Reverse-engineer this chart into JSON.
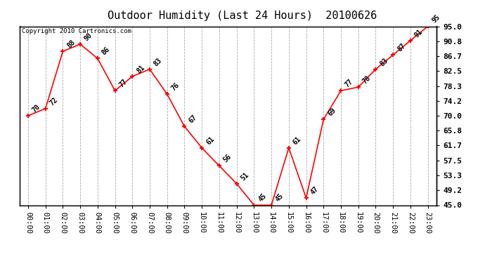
{
  "title": "Outdoor Humidity (Last 24 Hours)  20100626",
  "copyright_text": "Copyright 2010 Cartronics.com",
  "hours": [
    0,
    1,
    2,
    3,
    4,
    5,
    6,
    7,
    8,
    9,
    10,
    11,
    12,
    13,
    14,
    15,
    16,
    17,
    18,
    19,
    20,
    21,
    22,
    23
  ],
  "values": [
    70,
    72,
    88,
    90,
    86,
    77,
    81,
    83,
    76,
    67,
    61,
    56,
    51,
    45,
    45,
    61,
    47,
    69,
    77,
    78,
    83,
    87,
    91,
    95
  ],
  "labels": [
    "70",
    "72",
    "88",
    "90",
    "86",
    "77",
    "81",
    "83",
    "76",
    "67",
    "61",
    "56",
    "51",
    "45",
    "45",
    "61",
    "47",
    "69",
    "77",
    "78",
    "83",
    "87",
    "91",
    "95"
  ],
  "x_labels": [
    "00:00",
    "01:00",
    "02:00",
    "03:00",
    "04:00",
    "05:00",
    "06:00",
    "07:00",
    "08:00",
    "09:00",
    "10:00",
    "11:00",
    "12:00",
    "13:00",
    "14:00",
    "15:00",
    "16:00",
    "17:00",
    "18:00",
    "19:00",
    "20:00",
    "21:00",
    "22:00",
    "23:00"
  ],
  "y_ticks": [
    45.0,
    49.2,
    53.3,
    57.5,
    61.7,
    65.8,
    70.0,
    74.2,
    78.3,
    82.5,
    86.7,
    90.8,
    95.0
  ],
  "ylim": [
    45.0,
    95.0
  ],
  "line_color": "#ff0000",
  "marker_color": "#ff0000",
  "bg_color": "#ffffff",
  "plot_bg_color": "#ffffff",
  "grid_color": "#aaaaaa",
  "title_fontsize": 11,
  "label_fontsize": 7,
  "copyright_fontsize": 6.5,
  "tick_fontsize": 7.5,
  "ytick_fontsize": 8
}
